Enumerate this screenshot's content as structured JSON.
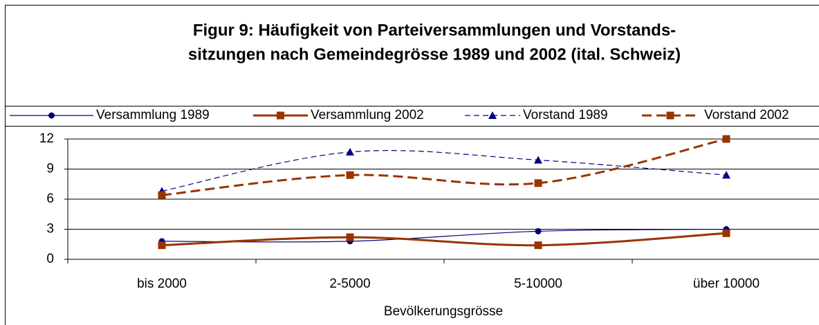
{
  "chart_data": {
    "type": "line",
    "title": [
      "Figur 9: Häufigkeit von Parteiversammlungen und Vorstands-",
      "sitzungen nach Gemeindegrösse 1989 und 2002  (ital. Schweiz)"
    ],
    "x_label": "Bevölkerungsgrösse",
    "categories": [
      "bis 2000",
      "2-5000",
      "5-10000",
      "über 10000"
    ],
    "series": [
      {
        "name": "Versammlung 1989",
        "color": "#000080",
        "line_style": "solid",
        "marker": "circle",
        "values": [
          1.8,
          1.8,
          2.8,
          3.0
        ]
      },
      {
        "name": "Versammlung 2002",
        "color": "#993300",
        "line_style": "solid",
        "marker": "square",
        "values": [
          1.4,
          2.2,
          1.4,
          2.6
        ]
      },
      {
        "name": "Vorstand 1989",
        "color": "#000080",
        "line_style": "dashed",
        "marker": "triangle",
        "values": [
          6.8,
          10.7,
          9.9,
          8.4
        ]
      },
      {
        "name": "Vorstand 2002",
        "color": "#993300",
        "line_style": "dashed",
        "marker": "square",
        "values": [
          6.4,
          8.4,
          7.6,
          12.0
        ]
      }
    ],
    "ylim": [
      0,
      12
    ],
    "yticks": [
      0,
      3,
      6,
      9,
      12
    ],
    "grid": true,
    "legend": "top"
  }
}
